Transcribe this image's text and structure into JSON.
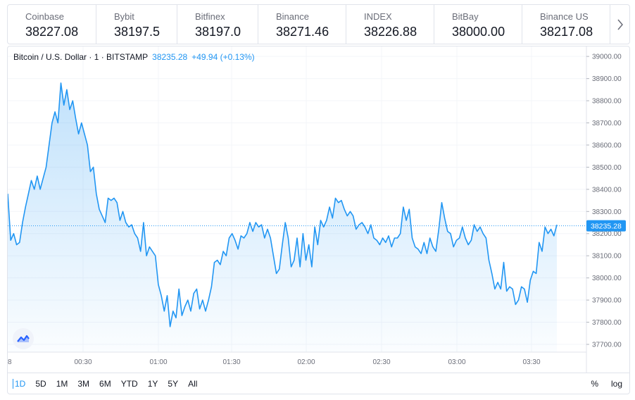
{
  "tickers": [
    {
      "name": "Coinbase",
      "price": "38227.08"
    },
    {
      "name": "Bybit",
      "price": "38197.5"
    },
    {
      "name": "Bitfinex",
      "price": "38197.0"
    },
    {
      "name": "Binance",
      "price": "38271.46"
    },
    {
      "name": "INDEX",
      "price": "38226.88"
    },
    {
      "name": "BitBay",
      "price": "38000.00"
    },
    {
      "name": "Binance US",
      "price": "38217.08"
    }
  ],
  "legend": {
    "symbol": "Bitcoin / U.S. Dollar · 1 · BITSTAMP",
    "price": "38235.28",
    "change": "+49.94 (+0.13%)"
  },
  "ranges": [
    "1D",
    "5D",
    "1M",
    "3M",
    "6M",
    "YTD",
    "1Y",
    "5Y",
    "All"
  ],
  "active_range": "1D",
  "right_controls": {
    "percent": "%",
    "log": "log"
  },
  "colors": {
    "line": "#2196f3",
    "accent": "#2196f3",
    "grid": "#f0f3fa",
    "border": "#e0e3eb"
  },
  "icons": {
    "next": "chevron-right-icon",
    "logo": "tradingview-logo-icon"
  },
  "chart_data": {
    "type": "area",
    "series": [
      {
        "values": [
          38380,
          38170,
          38200,
          38150,
          38160,
          38250,
          38320,
          38380,
          38440,
          38400,
          38460,
          38400,
          38450,
          38500,
          38600,
          38700,
          38750,
          38700,
          38880,
          38780,
          38850,
          38760,
          38800,
          38720,
          38650,
          38700,
          38650,
          38600,
          38480,
          38500,
          38380,
          38310,
          38280,
          38250,
          38360,
          38350,
          38360,
          38340,
          38260,
          38300,
          38250,
          38230,
          38240,
          38200,
          38180,
          38120,
          38250,
          38100,
          38140,
          38120,
          38100,
          37970,
          37920,
          37850,
          37920,
          37780,
          37850,
          37820,
          37950,
          37830,
          37870,
          37900,
          37850,
          37930,
          37950,
          37860,
          37900,
          37850,
          37900,
          37960,
          38070,
          38080,
          38060,
          38120,
          38100,
          38180,
          38200,
          38170,
          38130,
          38190,
          38180,
          38200,
          38250,
          38210,
          38250,
          38230,
          38240,
          38180,
          38220,
          38180,
          38100,
          38020,
          38040,
          38150,
          38250,
          38180,
          38050,
          38080,
          38180,
          38050,
          38200,
          38080,
          38150,
          38050,
          38230,
          38150,
          38260,
          38230,
          38260,
          38320,
          38270,
          38360,
          38340,
          38350,
          38310,
          38280,
          38300,
          38280,
          38220,
          38240,
          38250,
          38230,
          38200,
          38240,
          38180,
          38170,
          38150,
          38180,
          38160,
          38190,
          38140,
          38180,
          38180,
          38200,
          38320,
          38260,
          38310,
          38180,
          38140,
          38130,
          38110,
          38160,
          38110,
          38180,
          38140,
          38120,
          38220,
          38340,
          38270,
          38210,
          38200,
          38140,
          38170,
          38180,
          38230,
          38180,
          38150,
          38170,
          38240,
          38210,
          38230,
          38200,
          38180,
          38080,
          38020,
          37950,
          37980,
          37950,
          38070,
          37940,
          37960,
          37950,
          37880,
          37900,
          37960,
          37950,
          37890,
          37990,
          38030,
          38020,
          38160,
          38120,
          38230,
          38200,
          38220,
          38190,
          38240
        ]
      }
    ],
    "y_ticks": [
      "39000.00",
      "38900.00",
      "38800.00",
      "38700.00",
      "38600.00",
      "38500.00",
      "38400.00",
      "38300.00",
      "38200.00",
      "38100.00",
      "38000.00",
      "37900.00",
      "37800.00",
      "37700.00"
    ],
    "x_ticks": [
      "8",
      "00:30",
      "01:00",
      "01:30",
      "02:00",
      "02:30",
      "03:00",
      "03:30"
    ],
    "ylim": [
      37665,
      39045
    ],
    "last_value": 38235.28,
    "last_value_label": "38235.28",
    "grid": true,
    "scale": "linear"
  }
}
